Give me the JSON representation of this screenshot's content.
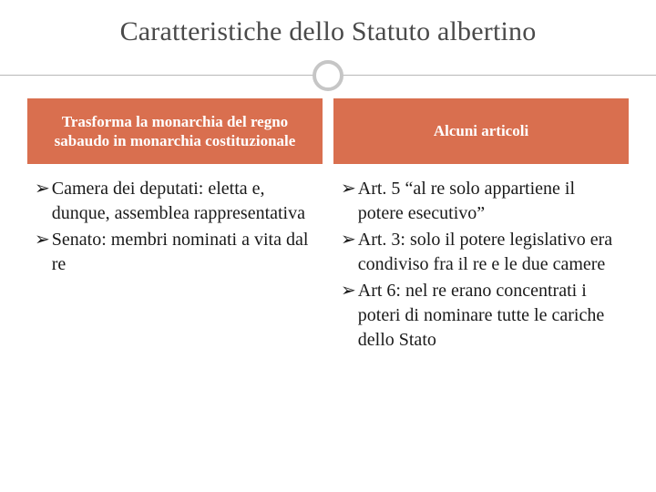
{
  "title": "Caratteristiche dello Statuto albertino",
  "colors": {
    "header_bg": "#d96f4f",
    "header_text": "#ffffff",
    "title_text": "#4a4a4a",
    "rule": "#b8b8b8",
    "circle_border": "#c6c6c6",
    "body_text": "#1a1a1a",
    "background": "#ffffff"
  },
  "typography": {
    "title_fontsize": 30,
    "header_fontsize": 17,
    "body_fontsize": 20,
    "font_family": "Georgia, 'Times New Roman', serif"
  },
  "bullet_glyph": "➢",
  "left": {
    "header": "Trasforma la monarchia del regno sabaudo in monarchia costituzionale",
    "items": [
      {
        "lead": "Camera dei deputati:",
        "rest": " eletta e, dunque, assemblea rappresentativa"
      },
      {
        "lead": "Senato:",
        "rest": " membri nominati a vita dal re"
      }
    ]
  },
  "right": {
    "header": "Alcuni articoli",
    "items": [
      {
        "lead": "Art. 5",
        "rest": " “al re solo appartiene il potere esecutivo”"
      },
      {
        "lead": "Art. 3:",
        "rest": " solo il potere legislativo era condiviso fra il re e le due camere"
      },
      {
        "lead": "Art 6:",
        "rest": " nel re erano concentrati i poteri di nominare tutte le cariche dello Stato"
      }
    ]
  }
}
